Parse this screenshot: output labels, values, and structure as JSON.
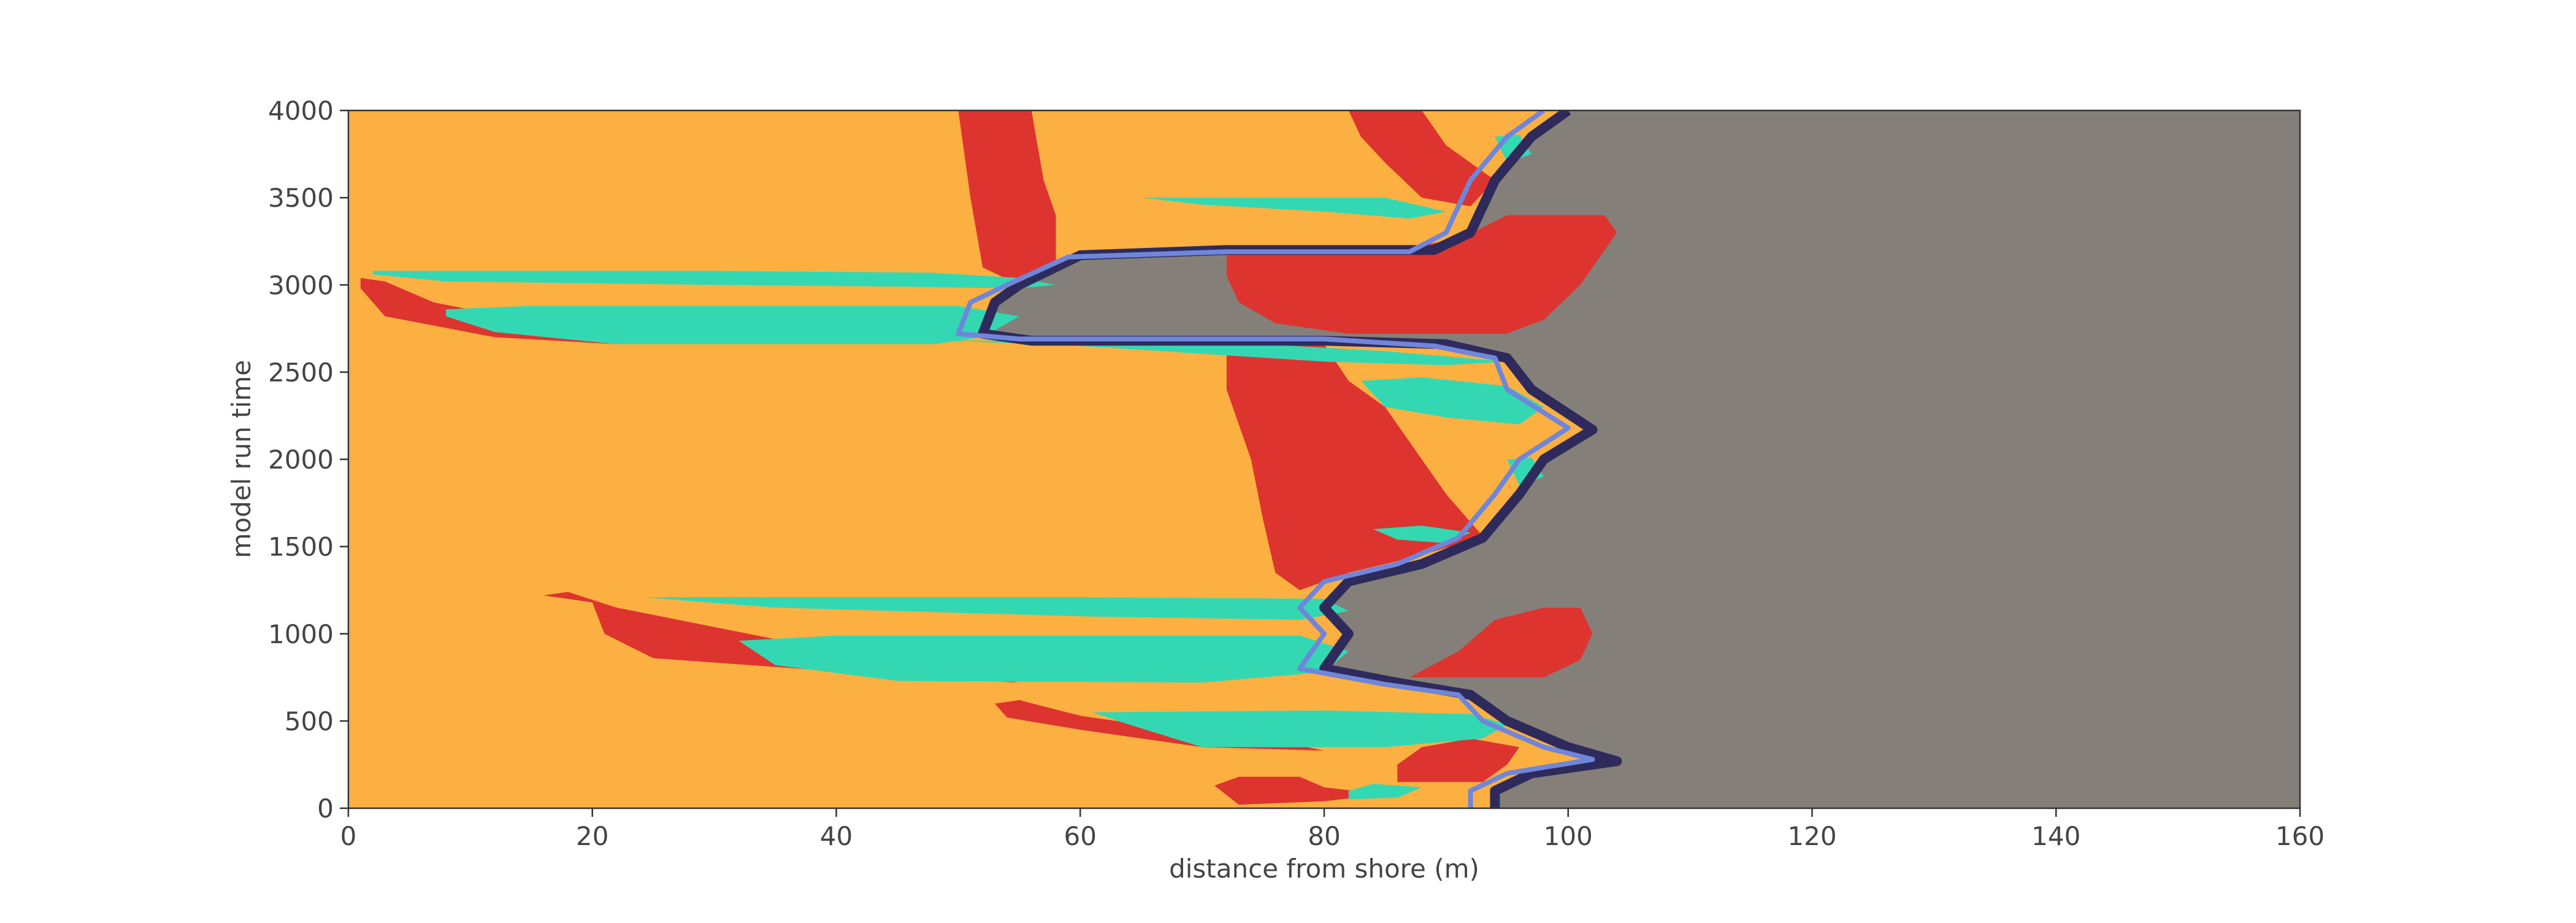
{
  "chart_data": {
    "type": "heatmap",
    "title": "",
    "xlabel": "distance from shore (m)",
    "ylabel": "model run time",
    "xlim": [
      0,
      160
    ],
    "ylim": [
      0,
      4000
    ],
    "xticks": [
      0,
      20,
      40,
      60,
      80,
      100,
      120,
      140,
      160
    ],
    "yticks": [
      0,
      500,
      1000,
      1500,
      2000,
      2500,
      3000,
      3500,
      4000
    ],
    "grid": false,
    "legend": "none",
    "colors": {
      "background_zone": "#FDB042",
      "red_zone": "#DD3430",
      "teal_zone": "#33D8B3",
      "light_blue_edge": "#6F86DB",
      "dark_navy_edge": "#2E2B5C",
      "grey_zone": "#848079"
    },
    "regions": [
      {
        "color_key": "grey_zone",
        "points": [
          [
            160,
            0
          ],
          [
            160,
            4000
          ],
          [
            100,
            4000
          ],
          [
            97,
            3850
          ],
          [
            94,
            3600
          ],
          [
            92,
            3300
          ],
          [
            89,
            3200
          ],
          [
            72,
            3200
          ],
          [
            60,
            3170
          ],
          [
            55,
            3000
          ],
          [
            53,
            2900
          ],
          [
            52,
            2720
          ],
          [
            56,
            2680
          ],
          [
            80,
            2680
          ],
          [
            90,
            2660
          ],
          [
            95,
            2580
          ],
          [
            97,
            2400
          ],
          [
            102,
            2170
          ],
          [
            98,
            2000
          ],
          [
            96,
            1800
          ],
          [
            93,
            1550
          ],
          [
            88,
            1400
          ],
          [
            82,
            1300
          ],
          [
            80,
            1150
          ],
          [
            82,
            1000
          ],
          [
            80,
            800
          ],
          [
            86,
            720
          ],
          [
            92,
            650
          ],
          [
            95,
            500
          ],
          [
            100,
            350
          ],
          [
            104,
            270
          ],
          [
            97,
            200
          ],
          [
            94,
            100
          ],
          [
            94,
            0
          ]
        ]
      },
      {
        "color_key": "red_zone",
        "points": [
          [
            72,
            3200
          ],
          [
            85,
            3200
          ],
          [
            91,
            3260
          ],
          [
            95,
            3400
          ],
          [
            103,
            3400
          ],
          [
            104,
            3300
          ],
          [
            101,
            3000
          ],
          [
            98,
            2800
          ],
          [
            95,
            2720
          ],
          [
            82,
            2720
          ],
          [
            76,
            2780
          ],
          [
            73,
            2900
          ],
          [
            72,
            3050
          ]
        ]
      },
      {
        "color_key": "red_zone",
        "points": [
          [
            87,
            750
          ],
          [
            91,
            900
          ],
          [
            94,
            1080
          ],
          [
            98,
            1150
          ],
          [
            101,
            1150
          ],
          [
            102,
            1000
          ],
          [
            101,
            850
          ],
          [
            98,
            750
          ]
        ]
      },
      {
        "color_key": "red_zone",
        "points": [
          [
            50,
            4000
          ],
          [
            56,
            4000
          ],
          [
            57,
            3600
          ],
          [
            58,
            3400
          ],
          [
            58,
            3100
          ],
          [
            55,
            3000
          ],
          [
            52,
            3100
          ],
          [
            51,
            3500
          ]
        ]
      },
      {
        "color_key": "red_zone",
        "points": [
          [
            82,
            4000
          ],
          [
            88,
            4000
          ],
          [
            90,
            3800
          ],
          [
            94,
            3600
          ],
          [
            92,
            3450
          ],
          [
            88,
            3500
          ],
          [
            85,
            3700
          ],
          [
            83,
            3850
          ]
        ]
      },
      {
        "color_key": "red_zone",
        "points": [
          [
            72,
            2660
          ],
          [
            80,
            2660
          ],
          [
            82,
            2450
          ],
          [
            85,
            2300
          ],
          [
            87,
            2100
          ],
          [
            90,
            1800
          ],
          [
            93,
            1560
          ],
          [
            88,
            1450
          ],
          [
            82,
            1350
          ],
          [
            78,
            1250
          ],
          [
            76,
            1350
          ],
          [
            75,
            1650
          ],
          [
            74,
            2000
          ],
          [
            72,
            2400
          ]
        ]
      },
      {
        "color_key": "red_zone",
        "points": [
          [
            16,
            1220
          ],
          [
            18,
            1240
          ],
          [
            22,
            1150
          ],
          [
            40,
            900
          ],
          [
            55,
            720
          ],
          [
            45,
            760
          ],
          [
            25,
            860
          ],
          [
            21,
            1000
          ],
          [
            20,
            1180
          ]
        ]
      },
      {
        "color_key": "red_zone",
        "points": [
          [
            1,
            3040
          ],
          [
            3,
            3020
          ],
          [
            7,
            2900
          ],
          [
            20,
            2720
          ],
          [
            22,
            2660
          ],
          [
            12,
            2700
          ],
          [
            3,
            2820
          ],
          [
            1,
            2980
          ]
        ]
      },
      {
        "color_key": "red_zone",
        "points": [
          [
            53,
            600
          ],
          [
            55,
            620
          ],
          [
            60,
            530
          ],
          [
            70,
            430
          ],
          [
            78,
            360
          ],
          [
            80,
            330
          ],
          [
            70,
            350
          ],
          [
            60,
            450
          ],
          [
            54,
            520
          ]
        ]
      },
      {
        "color_key": "red_zone",
        "points": [
          [
            71,
            130
          ],
          [
            73,
            180
          ],
          [
            78,
            180
          ],
          [
            80,
            120
          ],
          [
            85,
            80
          ],
          [
            80,
            40
          ],
          [
            73,
            20
          ]
        ]
      },
      {
        "color_key": "red_zone",
        "points": [
          [
            86,
            150
          ],
          [
            93,
            150
          ],
          [
            95,
            250
          ],
          [
            96,
            350
          ],
          [
            92,
            400
          ],
          [
            88,
            350
          ],
          [
            86,
            250
          ]
        ]
      },
      {
        "color_key": "teal_zone",
        "points": [
          [
            2,
            3080
          ],
          [
            30,
            3080
          ],
          [
            48,
            3070
          ],
          [
            55,
            3040
          ],
          [
            58,
            3000
          ],
          [
            55,
            2980
          ],
          [
            45,
            2990
          ],
          [
            30,
            3000
          ],
          [
            8,
            3020
          ],
          [
            2,
            3060
          ]
        ]
      },
      {
        "color_key": "teal_zone",
        "points": [
          [
            8,
            2860
          ],
          [
            15,
            2880
          ],
          [
            50,
            2880
          ],
          [
            55,
            2820
          ],
          [
            52,
            2700
          ],
          [
            48,
            2660
          ],
          [
            22,
            2660
          ],
          [
            12,
            2730
          ],
          [
            8,
            2820
          ]
        ]
      },
      {
        "color_key": "teal_zone",
        "points": [
          [
            65,
            3500
          ],
          [
            85,
            3500
          ],
          [
            90,
            3420
          ],
          [
            87,
            3380
          ],
          [
            80,
            3420
          ],
          [
            70,
            3460
          ]
        ]
      },
      {
        "color_key": "teal_zone",
        "points": [
          [
            49,
            2680
          ],
          [
            70,
            2680
          ],
          [
            85,
            2620
          ],
          [
            95,
            2560
          ],
          [
            90,
            2540
          ],
          [
            80,
            2560
          ],
          [
            60,
            2650
          ]
        ]
      },
      {
        "color_key": "teal_zone",
        "points": [
          [
            83,
            2450
          ],
          [
            88,
            2470
          ],
          [
            95,
            2420
          ],
          [
            98,
            2300
          ],
          [
            96,
            2200
          ],
          [
            90,
            2240
          ],
          [
            85,
            2300
          ]
        ]
      },
      {
        "color_key": "teal_zone",
        "points": [
          [
            24,
            1210
          ],
          [
            60,
            1210
          ],
          [
            80,
            1200
          ],
          [
            82,
            1130
          ],
          [
            78,
            1080
          ],
          [
            60,
            1100
          ],
          [
            35,
            1150
          ]
        ]
      },
      {
        "color_key": "teal_zone",
        "points": [
          [
            32,
            960
          ],
          [
            40,
            990
          ],
          [
            78,
            990
          ],
          [
            82,
            900
          ],
          [
            80,
            780
          ],
          [
            70,
            720
          ],
          [
            45,
            730
          ],
          [
            35,
            820
          ]
        ]
      },
      {
        "color_key": "teal_zone",
        "points": [
          [
            61,
            550
          ],
          [
            80,
            560
          ],
          [
            92,
            540
          ],
          [
            95,
            480
          ],
          [
            93,
            400
          ],
          [
            85,
            350
          ],
          [
            70,
            350
          ],
          [
            64,
            480
          ]
        ]
      },
      {
        "color_key": "teal_zone",
        "points": [
          [
            84,
            1600
          ],
          [
            88,
            1620
          ],
          [
            92,
            1580
          ],
          [
            90,
            1520
          ],
          [
            86,
            1540
          ]
        ]
      },
      {
        "color_key": "teal_zone",
        "points": [
          [
            82,
            100
          ],
          [
            84,
            140
          ],
          [
            88,
            120
          ],
          [
            86,
            60
          ],
          [
            82,
            50
          ]
        ]
      },
      {
        "color_key": "teal_zone",
        "points": [
          [
            94,
            3850
          ],
          [
            96,
            3860
          ],
          [
            97,
            3750
          ],
          [
            95,
            3700
          ]
        ]
      },
      {
        "color_key": "teal_zone",
        "points": [
          [
            95,
            2000
          ],
          [
            97,
            2010
          ],
          [
            98,
            1900
          ],
          [
            96,
            1850
          ]
        ]
      }
    ],
    "boundary_lines": [
      {
        "color_key": "dark_navy_edge",
        "width": 16,
        "points": [
          [
            100,
            4000
          ],
          [
            97,
            3850
          ],
          [
            94,
            3600
          ],
          [
            92,
            3300
          ],
          [
            89,
            3200
          ],
          [
            72,
            3200
          ],
          [
            60,
            3170
          ],
          [
            55,
            3000
          ],
          [
            53,
            2900
          ],
          [
            52,
            2720
          ],
          [
            56,
            2680
          ],
          [
            80,
            2680
          ],
          [
            90,
            2660
          ],
          [
            95,
            2580
          ],
          [
            97,
            2400
          ],
          [
            102,
            2170
          ],
          [
            98,
            2000
          ],
          [
            96,
            1800
          ],
          [
            93,
            1550
          ],
          [
            88,
            1400
          ],
          [
            82,
            1300
          ],
          [
            80,
            1150
          ],
          [
            82,
            1000
          ],
          [
            80,
            800
          ],
          [
            86,
            720
          ],
          [
            92,
            650
          ],
          [
            95,
            500
          ],
          [
            100,
            350
          ],
          [
            104,
            270
          ],
          [
            97,
            200
          ],
          [
            94,
            100
          ],
          [
            94,
            0
          ]
        ]
      },
      {
        "color_key": "light_blue_edge",
        "width": 8,
        "points": [
          [
            98,
            4000
          ],
          [
            95,
            3850
          ],
          [
            92,
            3600
          ],
          [
            90,
            3300
          ],
          [
            87,
            3190
          ],
          [
            72,
            3190
          ],
          [
            59,
            3160
          ],
          [
            54,
            3000
          ],
          [
            51,
            2900
          ],
          [
            50,
            2720
          ],
          [
            55,
            2690
          ],
          [
            80,
            2690
          ],
          [
            89,
            2650
          ],
          [
            94,
            2580
          ],
          [
            95,
            2400
          ],
          [
            100,
            2180
          ],
          [
            96,
            2000
          ],
          [
            94,
            1800
          ],
          [
            91,
            1550
          ],
          [
            86,
            1400
          ],
          [
            80,
            1300
          ],
          [
            78,
            1150
          ],
          [
            80,
            1000
          ],
          [
            78,
            800
          ],
          [
            85,
            710
          ],
          [
            91,
            650
          ],
          [
            93,
            500
          ],
          [
            98,
            350
          ],
          [
            102,
            280
          ],
          [
            95,
            200
          ],
          [
            92,
            100
          ],
          [
            92,
            0
          ]
        ]
      }
    ]
  }
}
